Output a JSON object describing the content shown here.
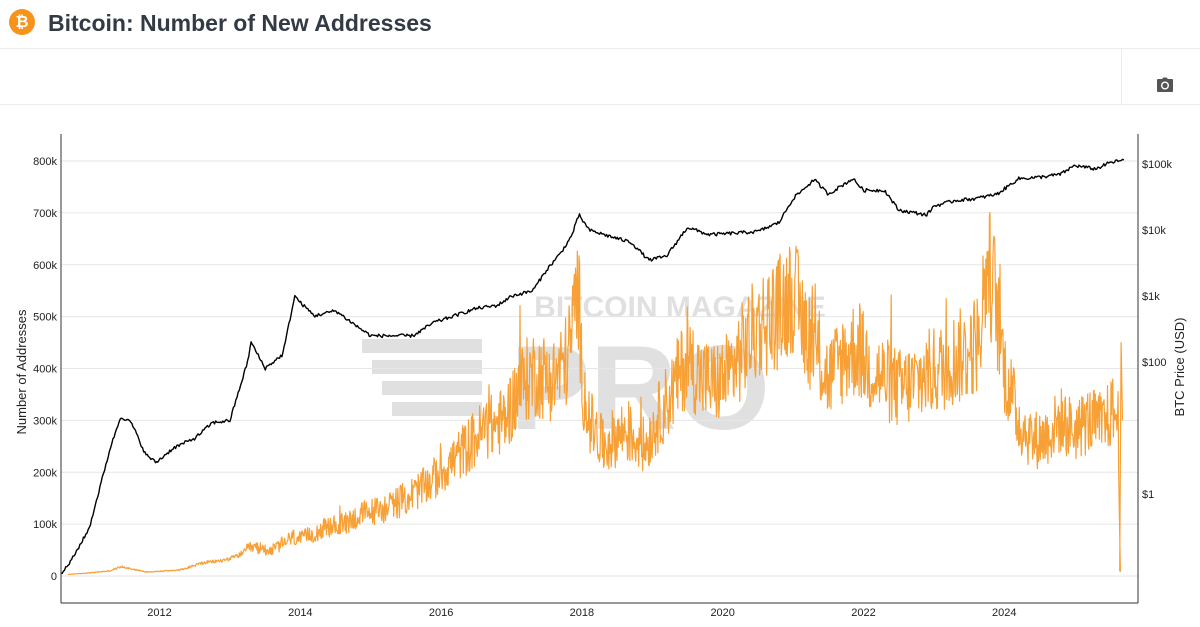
{
  "header": {
    "logo_icon": "bitcoin-icon",
    "title": "Bitcoin: Number of New Addresses"
  },
  "toolbar": {
    "camera_icon": "camera-icon"
  },
  "watermark": {
    "text": "BITCOIN MAGAZINE",
    "text2": "PRO"
  },
  "colors": {
    "addresses": "#f7a035",
    "price": "#000000",
    "grid": "#e6e6e6",
    "brand": "#f7931a"
  },
  "chart_data": {
    "type": "line",
    "xlabel": "",
    "ylabel": "Number of Addresses",
    "ylabel_right": "BTC Price (USD)",
    "x_tick_labels": [
      "2012",
      "2014",
      "2016",
      "2018",
      "2020",
      "2022",
      "2024"
    ],
    "y_tick_labels": [
      "0",
      "100k",
      "200k",
      "300k",
      "400k",
      "500k",
      "600k",
      "700k",
      "800k"
    ],
    "y_right_tick_labels": [
      "$1",
      "$100",
      "$1k",
      "$10k",
      "$100k"
    ],
    "ylim": [
      0,
      850000
    ],
    "y_right_scale": "log",
    "y_right_lim": [
      0.01,
      300000
    ],
    "xlim": [
      2010.6,
      2025.9
    ],
    "series": [
      {
        "axis": "left",
        "style": "noisy",
        "x": [
          2010.7,
          2011.0,
          2011.3,
          2011.45,
          2011.6,
          2011.8,
          2012.0,
          2012.3,
          2012.6,
          2012.9,
          2013.1,
          2013.3,
          2013.6,
          2013.9,
          2014.0,
          2014.3,
          2014.6,
          2014.9,
          2015.2,
          2015.5,
          2015.8,
          2016.0,
          2016.3,
          2016.6,
          2016.9,
          2017.1,
          2017.3,
          2017.6,
          2017.8,
          2017.95,
          2018.0,
          2018.1,
          2018.3,
          2018.6,
          2018.9,
          2019.1,
          2019.3,
          2019.5,
          2019.7,
          2019.9,
          2020.1,
          2020.3,
          2020.5,
          2020.8,
          2021.0,
          2021.1,
          2021.3,
          2021.5,
          2021.7,
          2021.9,
          2022.1,
          2022.3,
          2022.5,
          2022.7,
          2022.9,
          2023.1,
          2023.3,
          2023.5,
          2023.65,
          2023.75,
          2023.85,
          2024.0,
          2024.2,
          2024.4,
          2024.6,
          2024.8,
          2025.0,
          2025.2,
          2025.4,
          2025.55,
          2025.62,
          2025.65
        ],
        "values": [
          3000,
          6000,
          10000,
          18000,
          14000,
          8000,
          9000,
          12000,
          25000,
          30000,
          38000,
          55000,
          50000,
          75000,
          70000,
          90000,
          100000,
          120000,
          130000,
          150000,
          175000,
          200000,
          240000,
          280000,
          300000,
          360000,
          390000,
          380000,
          420000,
          560000,
          380000,
          300000,
          250000,
          280000,
          250000,
          310000,
          360000,
          420000,
          380000,
          370000,
          390000,
          440000,
          480000,
          510000,
          550000,
          500000,
          440000,
          380000,
          420000,
          440000,
          400000,
          380000,
          360000,
          370000,
          390000,
          400000,
          420000,
          430000,
          460000,
          600000,
          560000,
          400000,
          300000,
          260000,
          270000,
          300000,
          280000,
          300000,
          290000,
          320000,
          300000,
          10000
        ]
      },
      {
        "axis": "right",
        "style": "smooth",
        "x": [
          2010.6,
          2010.75,
          2011.0,
          2011.3,
          2011.45,
          2011.6,
          2011.8,
          2011.95,
          2012.2,
          2012.5,
          2012.75,
          2013.0,
          2013.25,
          2013.3,
          2013.5,
          2013.75,
          2013.92,
          2014.0,
          2014.2,
          2014.5,
          2014.8,
          2015.0,
          2015.3,
          2015.6,
          2015.9,
          2016.0,
          2016.5,
          2016.8,
          2017.0,
          2017.3,
          2017.5,
          2017.7,
          2017.85,
          2017.96,
          2018.1,
          2018.4,
          2018.7,
          2018.95,
          2019.2,
          2019.5,
          2019.8,
          2020.2,
          2020.5,
          2020.8,
          2021.0,
          2021.3,
          2021.5,
          2021.85,
          2022.0,
          2022.3,
          2022.5,
          2022.9,
          2023.0,
          2023.3,
          2023.6,
          2023.9,
          2024.2,
          2024.5,
          2024.8,
          2025.0,
          2025.3,
          2025.5,
          2025.7
        ],
        "values": [
          0.06,
          0.1,
          0.3,
          5,
          15,
          12,
          4,
          3,
          5,
          7,
          12,
          13,
          100,
          200,
          80,
          130,
          1000,
          800,
          500,
          600,
          350,
          250,
          250,
          250,
          400,
          430,
          650,
          720,
          1000,
          1200,
          2500,
          4500,
          8000,
          17000,
          10000,
          8000,
          6500,
          3500,
          4000,
          11000,
          8500,
          9000,
          9500,
          13000,
          30000,
          58000,
          35000,
          60000,
          40000,
          40000,
          20000,
          17000,
          23000,
          28000,
          30000,
          35000,
          60000,
          63000,
          70000,
          95000,
          84000,
          105000,
          115000
        ]
      }
    ]
  }
}
